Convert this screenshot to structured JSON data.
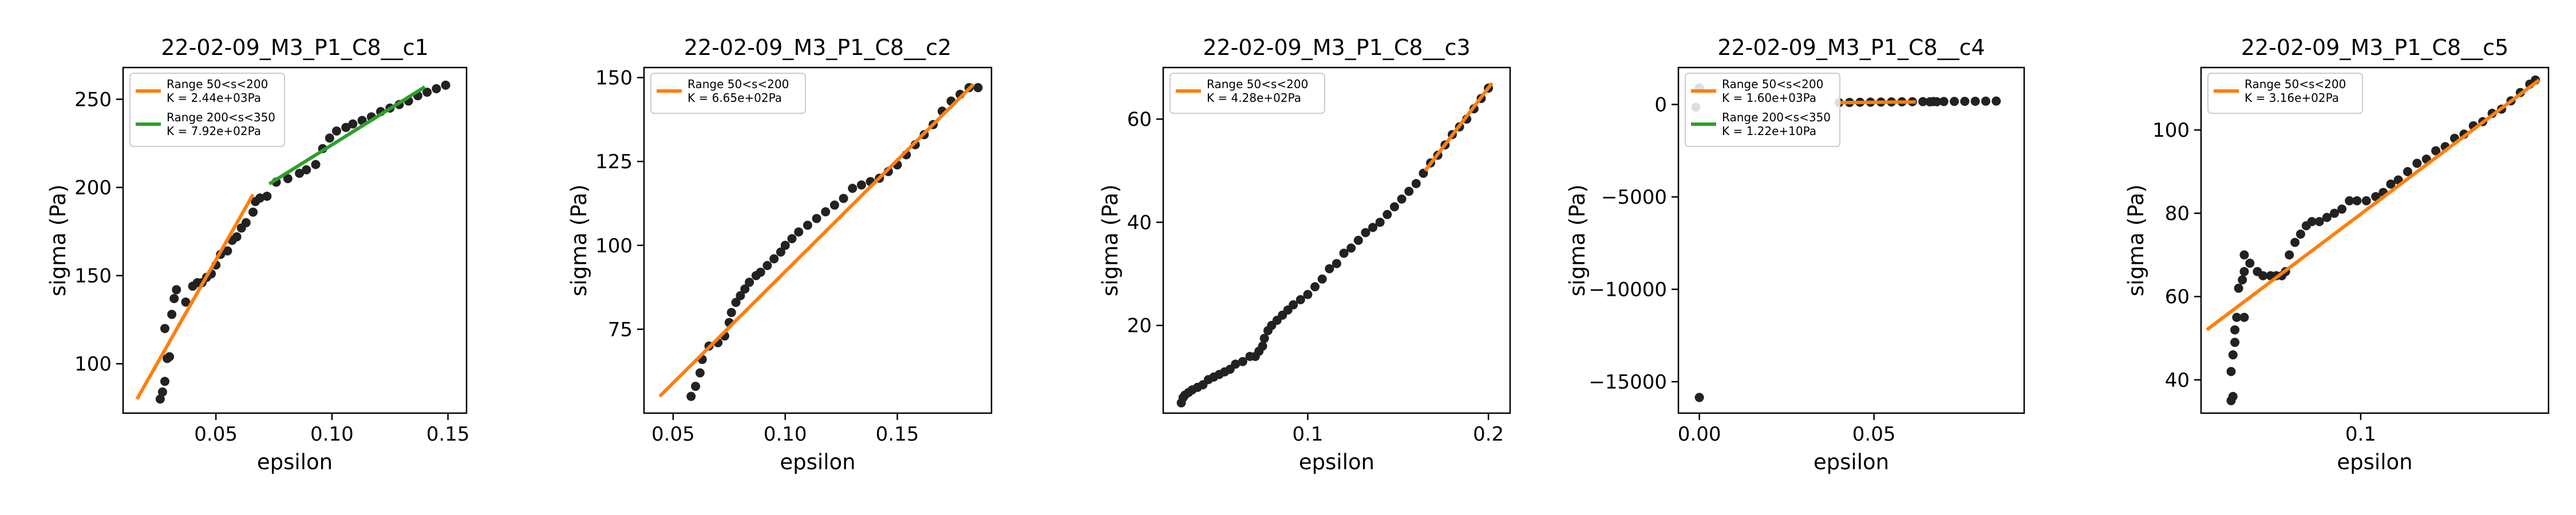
{
  "colors": {
    "points": "#222222",
    "fit1": "#ff7f0e",
    "fit2": "#2ca02c",
    "axes": "#000000"
  },
  "chart_data": [
    {
      "type": "scatter",
      "title": "22-02-09_M3_P1_C8__c1",
      "xlabel": "epsilon",
      "ylabel": "sigma (Pa)",
      "xlim": [
        0.01,
        0.158
      ],
      "ylim": [
        72,
        268
      ],
      "xticks": [
        0.05,
        0.1,
        0.15
      ],
      "xticklabels": [
        "0.05",
        "0.10",
        "0.15"
      ],
      "yticks": [
        100,
        150,
        200,
        250
      ],
      "yticklabels": [
        "100",
        "150",
        "200",
        "250"
      ],
      "legend_position": "top-left",
      "grid": false,
      "points": [
        [
          0.026,
          80
        ],
        [
          0.027,
          84
        ],
        [
          0.028,
          90
        ],
        [
          0.029,
          103
        ],
        [
          0.03,
          104
        ],
        [
          0.028,
          120
        ],
        [
          0.031,
          128
        ],
        [
          0.032,
          137
        ],
        [
          0.033,
          142
        ],
        [
          0.037,
          135
        ],
        [
          0.04,
          144
        ],
        [
          0.042,
          146
        ],
        [
          0.044,
          146
        ],
        [
          0.046,
          149
        ],
        [
          0.048,
          151
        ],
        [
          0.05,
          156
        ],
        [
          0.052,
          162
        ],
        [
          0.055,
          164
        ],
        [
          0.057,
          170
        ],
        [
          0.059,
          172
        ],
        [
          0.061,
          177
        ],
        [
          0.063,
          180
        ],
        [
          0.066,
          186
        ],
        [
          0.067,
          192
        ],
        [
          0.069,
          194
        ],
        [
          0.072,
          195
        ],
        [
          0.076,
          203
        ],
        [
          0.081,
          205
        ],
        [
          0.086,
          208
        ],
        [
          0.089,
          210
        ],
        [
          0.093,
          213
        ],
        [
          0.096,
          222
        ],
        [
          0.099,
          228
        ],
        [
          0.102,
          232
        ],
        [
          0.106,
          234
        ],
        [
          0.109,
          236
        ],
        [
          0.113,
          238
        ],
        [
          0.117,
          240
        ],
        [
          0.121,
          243
        ],
        [
          0.125,
          245
        ],
        [
          0.129,
          247
        ],
        [
          0.133,
          249
        ],
        [
          0.137,
          252
        ],
        [
          0.141,
          254
        ],
        [
          0.145,
          256
        ],
        [
          0.149,
          258
        ]
      ],
      "fits": [
        {
          "label": "Range 50<s<200",
          "k_label": "K = 2.44e+03Pa",
          "color": "#ff7f0e",
          "x": [
            0.016,
            0.066
          ],
          "y": [
            80,
            196
          ]
        },
        {
          "label": "Range 200<s<350",
          "k_label": "K = 7.92e+02Pa",
          "color": "#2ca02c",
          "x": [
            0.073,
            0.14
          ],
          "y": [
            202,
            257
          ]
        }
      ]
    },
    {
      "type": "scatter",
      "title": "22-02-09_M3_P1_C8__c2",
      "xlabel": "epsilon",
      "ylabel": "sigma (Pa)",
      "xlim": [
        0.037,
        0.192
      ],
      "ylim": [
        50,
        153
      ],
      "xticks": [
        0.05,
        0.1,
        0.15
      ],
      "xticklabels": [
        "0.05",
        "0.10",
        "0.15"
      ],
      "yticks": [
        75,
        100,
        125,
        150
      ],
      "yticklabels": [
        "75",
        "100",
        "125",
        "150"
      ],
      "legend_position": "top-left",
      "grid": false,
      "points": [
        [
          0.058,
          55
        ],
        [
          0.06,
          58
        ],
        [
          0.062,
          62
        ],
        [
          0.063,
          66
        ],
        [
          0.066,
          70
        ],
        [
          0.07,
          71
        ],
        [
          0.073,
          73
        ],
        [
          0.075,
          77
        ],
        [
          0.076,
          80
        ],
        [
          0.078,
          83
        ],
        [
          0.08,
          85
        ],
        [
          0.082,
          87
        ],
        [
          0.084,
          89
        ],
        [
          0.087,
          91
        ],
        [
          0.089,
          92
        ],
        [
          0.092,
          94
        ],
        [
          0.095,
          96
        ],
        [
          0.098,
          98
        ],
        [
          0.1,
          100
        ],
        [
          0.103,
          102
        ],
        [
          0.106,
          104
        ],
        [
          0.11,
          106
        ],
        [
          0.114,
          108
        ],
        [
          0.118,
          110
        ],
        [
          0.122,
          112
        ],
        [
          0.126,
          114
        ],
        [
          0.13,
          117
        ],
        [
          0.134,
          118
        ],
        [
          0.138,
          119
        ],
        [
          0.142,
          120
        ],
        [
          0.146,
          122
        ],
        [
          0.15,
          124
        ],
        [
          0.154,
          127
        ],
        [
          0.158,
          130
        ],
        [
          0.162,
          133
        ],
        [
          0.166,
          136
        ],
        [
          0.17,
          140
        ],
        [
          0.174,
          143
        ],
        [
          0.178,
          145
        ],
        [
          0.182,
          147
        ],
        [
          0.186,
          147
        ]
      ],
      "fits": [
        {
          "label": "Range 50<s<200",
          "k_label": "K = 6.65e+02Pa",
          "color": "#ff7f0e",
          "x": [
            0.044,
            0.184
          ],
          "y": [
            55,
            148
          ]
        }
      ]
    },
    {
      "type": "scatter",
      "title": "22-02-09_M3_P1_C8__c3",
      "xlabel": "epsilon",
      "ylabel": "sigma (Pa)",
      "xlim": [
        0.02,
        0.212
      ],
      "ylim": [
        3,
        70
      ],
      "xticks": [
        0.1,
        0.2
      ],
      "xticklabels": [
        "0.1",
        "0.2"
      ],
      "yticks": [
        20,
        40,
        60
      ],
      "yticklabels": [
        "20",
        "40",
        "60"
      ],
      "legend_position": "top-left",
      "grid": false,
      "points": [
        [
          0.03,
          5
        ],
        [
          0.031,
          6
        ],
        [
          0.032,
          6.5
        ],
        [
          0.034,
          7
        ],
        [
          0.036,
          7.5
        ],
        [
          0.039,
          8
        ],
        [
          0.042,
          8.5
        ],
        [
          0.045,
          9.5
        ],
        [
          0.048,
          10
        ],
        [
          0.051,
          10.5
        ],
        [
          0.054,
          11
        ],
        [
          0.057,
          11.5
        ],
        [
          0.06,
          12.5
        ],
        [
          0.064,
          13
        ],
        [
          0.068,
          14
        ],
        [
          0.071,
          14
        ],
        [
          0.073,
          15
        ],
        [
          0.075,
          16
        ],
        [
          0.076,
          17.5
        ],
        [
          0.078,
          19
        ],
        [
          0.08,
          20
        ],
        [
          0.083,
          21
        ],
        [
          0.086,
          22
        ],
        [
          0.089,
          23
        ],
        [
          0.092,
          24
        ],
        [
          0.096,
          25
        ],
        [
          0.1,
          26
        ],
        [
          0.104,
          27.5
        ],
        [
          0.108,
          29
        ],
        [
          0.112,
          31
        ],
        [
          0.116,
          32
        ],
        [
          0.12,
          34
        ],
        [
          0.124,
          35
        ],
        [
          0.128,
          36.5
        ],
        [
          0.132,
          38
        ],
        [
          0.136,
          39
        ],
        [
          0.14,
          40
        ],
        [
          0.144,
          41.5
        ],
        [
          0.148,
          43
        ],
        [
          0.152,
          44.5
        ],
        [
          0.156,
          46
        ],
        [
          0.16,
          47.5
        ],
        [
          0.164,
          49.5
        ],
        [
          0.168,
          51.5
        ],
        [
          0.172,
          53
        ],
        [
          0.176,
          55
        ],
        [
          0.18,
          57
        ],
        [
          0.184,
          58.5
        ],
        [
          0.188,
          60
        ],
        [
          0.192,
          62
        ],
        [
          0.196,
          64
        ],
        [
          0.2,
          66
        ]
      ],
      "fits": [
        {
          "label": "Range 50<s<200",
          "k_label": "K = 4.28e+02Pa",
          "color": "#ff7f0e",
          "x": [
            0.165,
            0.202
          ],
          "y": [
            50,
            67
          ]
        }
      ]
    },
    {
      "type": "scatter",
      "title": "22-02-09_M3_P1_C8__c4",
      "xlabel": "epsilon",
      "ylabel": "sigma (Pa)",
      "xlim": [
        -0.006,
        0.093
      ],
      "ylim": [
        -16700,
        2000
      ],
      "xticks": [
        0.0,
        0.05
      ],
      "xticklabels": [
        "0.00",
        "0.05"
      ],
      "yticks": [
        0,
        -5000,
        -10000,
        -15000
      ],
      "yticklabels": [
        "0",
        "−5000",
        "−10000",
        "−15000"
      ],
      "legend_position": "top-left",
      "grid": false,
      "points": [
        [
          0.0,
          -15850
        ],
        [
          0.0,
          900
        ],
        [
          -0.001,
          -150
        ],
        [
          0.04,
          100
        ],
        [
          0.043,
          110
        ],
        [
          0.046,
          120
        ],
        [
          0.049,
          125
        ],
        [
          0.052,
          130
        ],
        [
          0.055,
          140
        ],
        [
          0.058,
          145
        ],
        [
          0.061,
          150
        ],
        [
          0.064,
          155
        ],
        [
          0.067,
          160
        ],
        [
          0.07,
          160
        ],
        [
          0.073,
          165
        ],
        [
          0.076,
          170
        ],
        [
          0.079,
          175
        ],
        [
          0.082,
          180
        ],
        [
          0.085,
          185
        ],
        [
          0.068,
          150
        ],
        [
          0.066,
          145
        ]
      ],
      "fits": [
        {
          "label": "Range 50<s<200",
          "k_label": "K = 1.60e+03Pa",
          "color": "#ff7f0e",
          "x": [
            0.04,
            0.062
          ],
          "y": [
            100,
            140
          ]
        },
        {
          "label": "Range 200<s<350",
          "k_label": "K = 1.22e+10Pa",
          "color": "#2ca02c",
          "x": [
            0.062,
            0.062
          ],
          "y": [
            150,
            150
          ]
        }
      ]
    },
    {
      "type": "scatter",
      "title": "22-02-09_M3_P1_C8__c5",
      "xlabel": "epsilon",
      "ylabel": "sigma (Pa)",
      "xlim": [
        0.015,
        0.2
      ],
      "ylim": [
        32,
        115
      ],
      "xticks": [
        0.1
      ],
      "xticklabels": [
        "0.1"
      ],
      "yticks": [
        40,
        60,
        80,
        100
      ],
      "yticklabels": [
        "40",
        "60",
        "80",
        "100"
      ],
      "legend_position": "top-left",
      "grid": false,
      "points": [
        [
          0.031,
          35
        ],
        [
          0.032,
          36
        ],
        [
          0.031,
          42
        ],
        [
          0.032,
          46
        ],
        [
          0.033,
          49
        ],
        [
          0.033,
          52
        ],
        [
          0.034,
          55
        ],
        [
          0.038,
          55
        ],
        [
          0.035,
          62
        ],
        [
          0.037,
          64
        ],
        [
          0.038,
          66
        ],
        [
          0.038,
          70
        ],
        [
          0.041,
          68
        ],
        [
          0.045,
          66
        ],
        [
          0.048,
          65
        ],
        [
          0.052,
          65
        ],
        [
          0.055,
          65
        ],
        [
          0.058,
          65
        ],
        [
          0.06,
          66
        ],
        [
          0.062,
          70
        ],
        [
          0.065,
          73
        ],
        [
          0.068,
          75
        ],
        [
          0.071,
          77
        ],
        [
          0.074,
          78
        ],
        [
          0.078,
          78
        ],
        [
          0.082,
          79
        ],
        [
          0.086,
          80
        ],
        [
          0.09,
          81
        ],
        [
          0.094,
          83
        ],
        [
          0.098,
          83
        ],
        [
          0.103,
          83
        ],
        [
          0.108,
          84
        ],
        [
          0.112,
          85
        ],
        [
          0.116,
          87
        ],
        [
          0.12,
          88
        ],
        [
          0.125,
          90
        ],
        [
          0.13,
          92
        ],
        [
          0.135,
          93
        ],
        [
          0.14,
          95
        ],
        [
          0.145,
          96
        ],
        [
          0.15,
          98
        ],
        [
          0.155,
          99
        ],
        [
          0.16,
          101
        ],
        [
          0.165,
          102
        ],
        [
          0.17,
          104
        ],
        [
          0.175,
          105
        ],
        [
          0.18,
          107
        ],
        [
          0.185,
          109
        ],
        [
          0.19,
          111
        ],
        [
          0.193,
          112
        ]
      ],
      "fits": [
        {
          "label": "Range 50<s<200",
          "k_label": "K = 3.16e+02Pa",
          "color": "#ff7f0e",
          "x": [
            0.018,
            0.195
          ],
          "y": [
            52,
            112
          ]
        }
      ]
    }
  ]
}
